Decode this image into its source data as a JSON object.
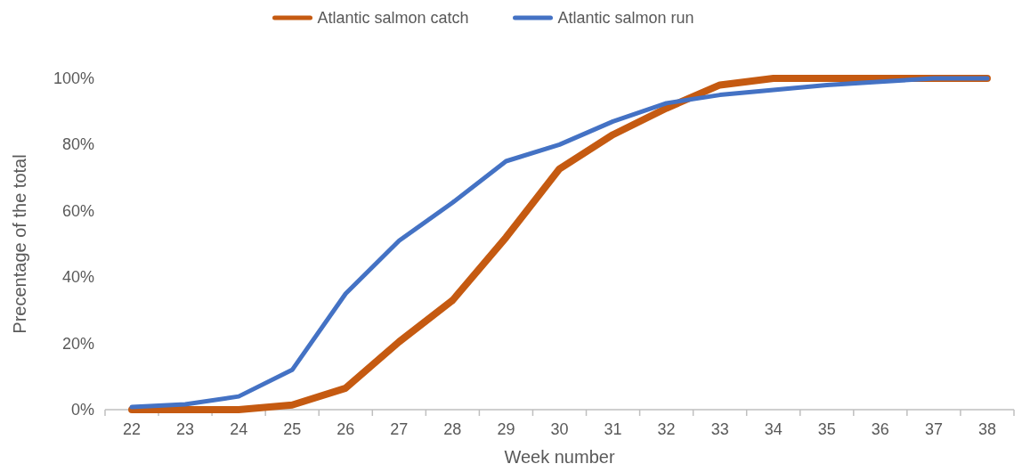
{
  "chart_data": {
    "type": "line",
    "xlabel": "Week number",
    "ylabel": "Precentage of the total",
    "categories": [
      "22",
      "23",
      "24",
      "25",
      "26",
      "27",
      "28",
      "29",
      "30",
      "31",
      "32",
      "33",
      "34",
      "35",
      "36",
      "37",
      "38"
    ],
    "series": [
      {
        "name": "Atlantic salmon catch",
        "color": "#c55a11",
        "values": [
          0,
          0,
          0,
          1.4,
          6.5,
          20.5,
          33,
          52,
          72.7,
          83,
          91,
          98,
          100,
          100,
          100,
          100,
          100
        ]
      },
      {
        "name": "Atlantic salmon run",
        "color": "#4472c4",
        "values": [
          0.8,
          1.6,
          4,
          12,
          35,
          51,
          62.5,
          75,
          80,
          87,
          92.5,
          95,
          96.5,
          98,
          99,
          100,
          100
        ]
      }
    ],
    "ylim": [
      0,
      100
    ],
    "yticks": [
      {
        "value": 0,
        "label": "0%"
      },
      {
        "value": 20,
        "label": "20%"
      },
      {
        "value": 40,
        "label": "40%"
      },
      {
        "value": 60,
        "label": "60%"
      },
      {
        "value": 80,
        "label": "80%"
      },
      {
        "value": 100,
        "label": "100%"
      }
    ],
    "grid": false,
    "legend": "top",
    "line_style": "solid"
  }
}
